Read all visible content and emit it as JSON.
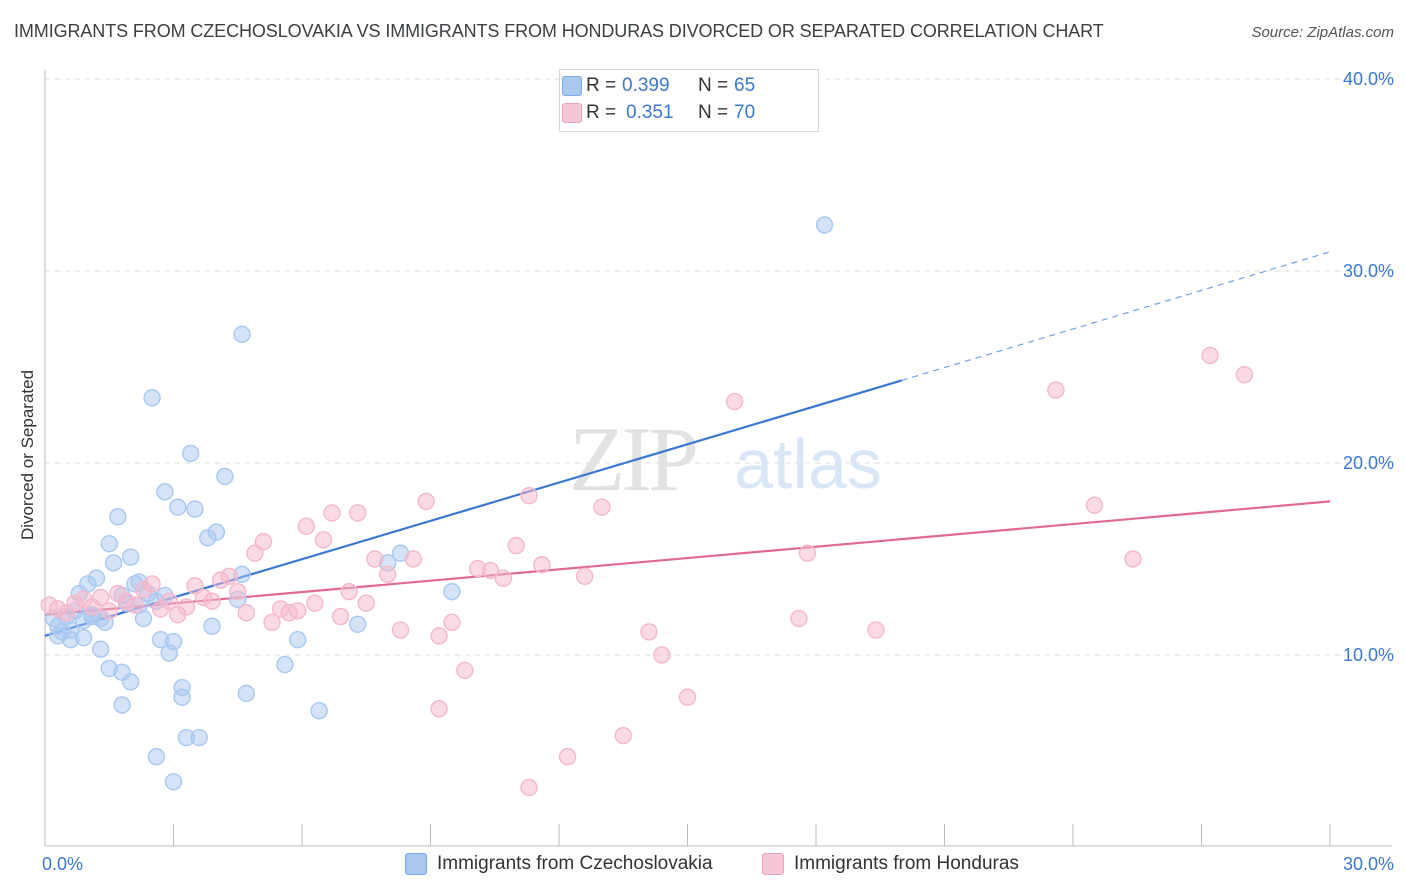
{
  "title": "IMMIGRANTS FROM CZECHOSLOVAKIA VS IMMIGRANTS FROM HONDURAS DIVORCED OR SEPARATED CORRELATION CHART",
  "source": "Source: ZipAtlas.com",
  "watermark": {
    "zip": "ZIP",
    "atlas": "atlas"
  },
  "legend": {
    "rows": [
      {
        "r_label": "R =",
        "r_value": "0.399",
        "n_label": "N =",
        "n_value": "65",
        "color": "#a9c8f0"
      },
      {
        "r_label": "R =",
        "r_value": "0.351",
        "n_label": "N =",
        "n_value": "70",
        "color": "#f5b8cb"
      }
    ]
  },
  "bottom_legend": [
    {
      "label": "Immigrants from Czechoslovakia",
      "color": "#a9c8f0"
    },
    {
      "label": "Immigrants from Honduras",
      "color": "#f5b8cb"
    }
  ],
  "chart_data": {
    "type": "scatter",
    "xlabel": "",
    "ylabel": "Divorced or Separated",
    "xlim": [
      0,
      30
    ],
    "ylim": [
      0,
      41
    ],
    "x_tick_labels": [
      "0.0%",
      "30.0%"
    ],
    "y_tick_labels": [
      "10.0%",
      "20.0%",
      "30.0%",
      "40.0%"
    ],
    "y_ticks": [
      10,
      20,
      30,
      40
    ],
    "grid": true,
    "legend_position": "top-center",
    "series": [
      {
        "name": "Immigrants from Czechoslovakia",
        "color": "#3a78d4",
        "fill": "#a9c8f0",
        "trend": {
          "x0": 0,
          "y0": 11.0,
          "x1": 20.0,
          "y1": 24.3,
          "dashed_to_x": 30.0,
          "dashed_to_y": 31.0
        },
        "points": [
          [
            0.2,
            11.9
          ],
          [
            0.3,
            11.5
          ],
          [
            0.4,
            11.2
          ],
          [
            0.5,
            12.0
          ],
          [
            0.6,
            10.8
          ],
          [
            0.7,
            12.3
          ],
          [
            0.8,
            13.2
          ],
          [
            0.9,
            11.8
          ],
          [
            1.0,
            13.7
          ],
          [
            1.1,
            12.1
          ],
          [
            1.2,
            14.0
          ],
          [
            1.3,
            11.9
          ],
          [
            1.4,
            11.7
          ],
          [
            1.5,
            15.8
          ],
          [
            1.6,
            14.8
          ],
          [
            1.7,
            17.2
          ],
          [
            1.8,
            13.1
          ],
          [
            1.9,
            12.7
          ],
          [
            2.0,
            15.1
          ],
          [
            2.1,
            13.7
          ],
          [
            2.2,
            13.8
          ],
          [
            2.3,
            11.9
          ],
          [
            2.4,
            13.2
          ],
          [
            2.5,
            23.4
          ],
          [
            2.6,
            12.8
          ],
          [
            2.7,
            10.8
          ],
          [
            2.8,
            18.5
          ],
          [
            2.9,
            10.1
          ],
          [
            3.0,
            10.7
          ],
          [
            3.1,
            17.7
          ],
          [
            3.2,
            8.3
          ],
          [
            3.3,
            5.7
          ],
          [
            3.4,
            20.5
          ],
          [
            3.5,
            17.6
          ],
          [
            3.6,
            5.7
          ],
          [
            3.8,
            16.1
          ],
          [
            3.9,
            11.5
          ],
          [
            4.0,
            16.4
          ],
          [
            4.2,
            19.3
          ],
          [
            4.6,
            14.2
          ],
          [
            4.5,
            12.9
          ],
          [
            4.6,
            26.7
          ],
          [
            4.7,
            8.0
          ],
          [
            1.5,
            9.3
          ],
          [
            1.3,
            10.3
          ],
          [
            2.0,
            8.6
          ],
          [
            1.8,
            9.1
          ],
          [
            3.0,
            3.4
          ],
          [
            2.6,
            4.7
          ],
          [
            1.8,
            7.4
          ],
          [
            5.6,
            9.5
          ],
          [
            5.9,
            10.8
          ],
          [
            6.4,
            7.1
          ],
          [
            7.3,
            11.6
          ],
          [
            8.0,
            14.8
          ],
          [
            8.3,
            15.3
          ],
          [
            9.5,
            13.3
          ],
          [
            18.2,
            32.4
          ],
          [
            0.3,
            11.0
          ],
          [
            0.6,
            11.3
          ],
          [
            0.9,
            10.9
          ],
          [
            1.1,
            12.0
          ],
          [
            3.2,
            7.8
          ],
          [
            2.2,
            12.6
          ],
          [
            2.8,
            13.1
          ]
        ]
      },
      {
        "name": "Immigrants from Honduras",
        "color": "#e06a94",
        "fill": "#f5b8cb",
        "trend": {
          "x0": 0,
          "y0": 12.1,
          "x1": 30.0,
          "y1": 18.0
        },
        "points": [
          [
            0.1,
            12.6
          ],
          [
            0.3,
            12.4
          ],
          [
            0.5,
            12.2
          ],
          [
            0.7,
            12.7
          ],
          [
            0.9,
            12.9
          ],
          [
            1.1,
            12.5
          ],
          [
            1.3,
            13.0
          ],
          [
            1.5,
            12.3
          ],
          [
            1.7,
            13.2
          ],
          [
            1.9,
            12.8
          ],
          [
            2.1,
            12.6
          ],
          [
            2.3,
            13.4
          ],
          [
            2.5,
            13.7
          ],
          [
            2.7,
            12.4
          ],
          [
            2.9,
            12.8
          ],
          [
            3.1,
            12.1
          ],
          [
            3.3,
            12.5
          ],
          [
            3.5,
            13.6
          ],
          [
            3.7,
            13.0
          ],
          [
            3.9,
            12.8
          ],
          [
            4.1,
            13.9
          ],
          [
            4.3,
            14.1
          ],
          [
            4.5,
            13.3
          ],
          [
            4.7,
            12.2
          ],
          [
            4.9,
            15.3
          ],
          [
            5.1,
            15.9
          ],
          [
            5.3,
            11.7
          ],
          [
            5.5,
            12.4
          ],
          [
            5.7,
            12.2
          ],
          [
            5.9,
            12.3
          ],
          [
            6.1,
            16.7
          ],
          [
            6.3,
            12.7
          ],
          [
            6.5,
            16.0
          ],
          [
            6.7,
            17.4
          ],
          [
            6.9,
            12.0
          ],
          [
            7.1,
            13.3
          ],
          [
            7.3,
            17.4
          ],
          [
            7.5,
            12.7
          ],
          [
            7.7,
            15.0
          ],
          [
            8.0,
            14.2
          ],
          [
            8.3,
            11.3
          ],
          [
            8.6,
            15.0
          ],
          [
            8.9,
            18.0
          ],
          [
            9.2,
            11.0
          ],
          [
            9.5,
            11.7
          ],
          [
            9.8,
            9.2
          ],
          [
            10.1,
            14.5
          ],
          [
            10.4,
            14.4
          ],
          [
            10.7,
            14.0
          ],
          [
            11.0,
            15.7
          ],
          [
            11.3,
            18.3
          ],
          [
            11.6,
            14.7
          ],
          [
            12.2,
            4.7
          ],
          [
            12.6,
            14.1
          ],
          [
            13.0,
            17.7
          ],
          [
            13.5,
            5.8
          ],
          [
            14.1,
            11.2
          ],
          [
            14.4,
            10.0
          ],
          [
            15.0,
            7.8
          ],
          [
            16.1,
            23.2
          ],
          [
            17.6,
            11.9
          ],
          [
            17.8,
            15.3
          ],
          [
            19.4,
            11.3
          ],
          [
            11.3,
            3.1
          ],
          [
            9.2,
            7.2
          ],
          [
            23.6,
            23.8
          ],
          [
            24.5,
            17.8
          ],
          [
            25.4,
            15.0
          ],
          [
            27.2,
            25.6
          ],
          [
            28.0,
            24.6
          ]
        ]
      }
    ]
  }
}
